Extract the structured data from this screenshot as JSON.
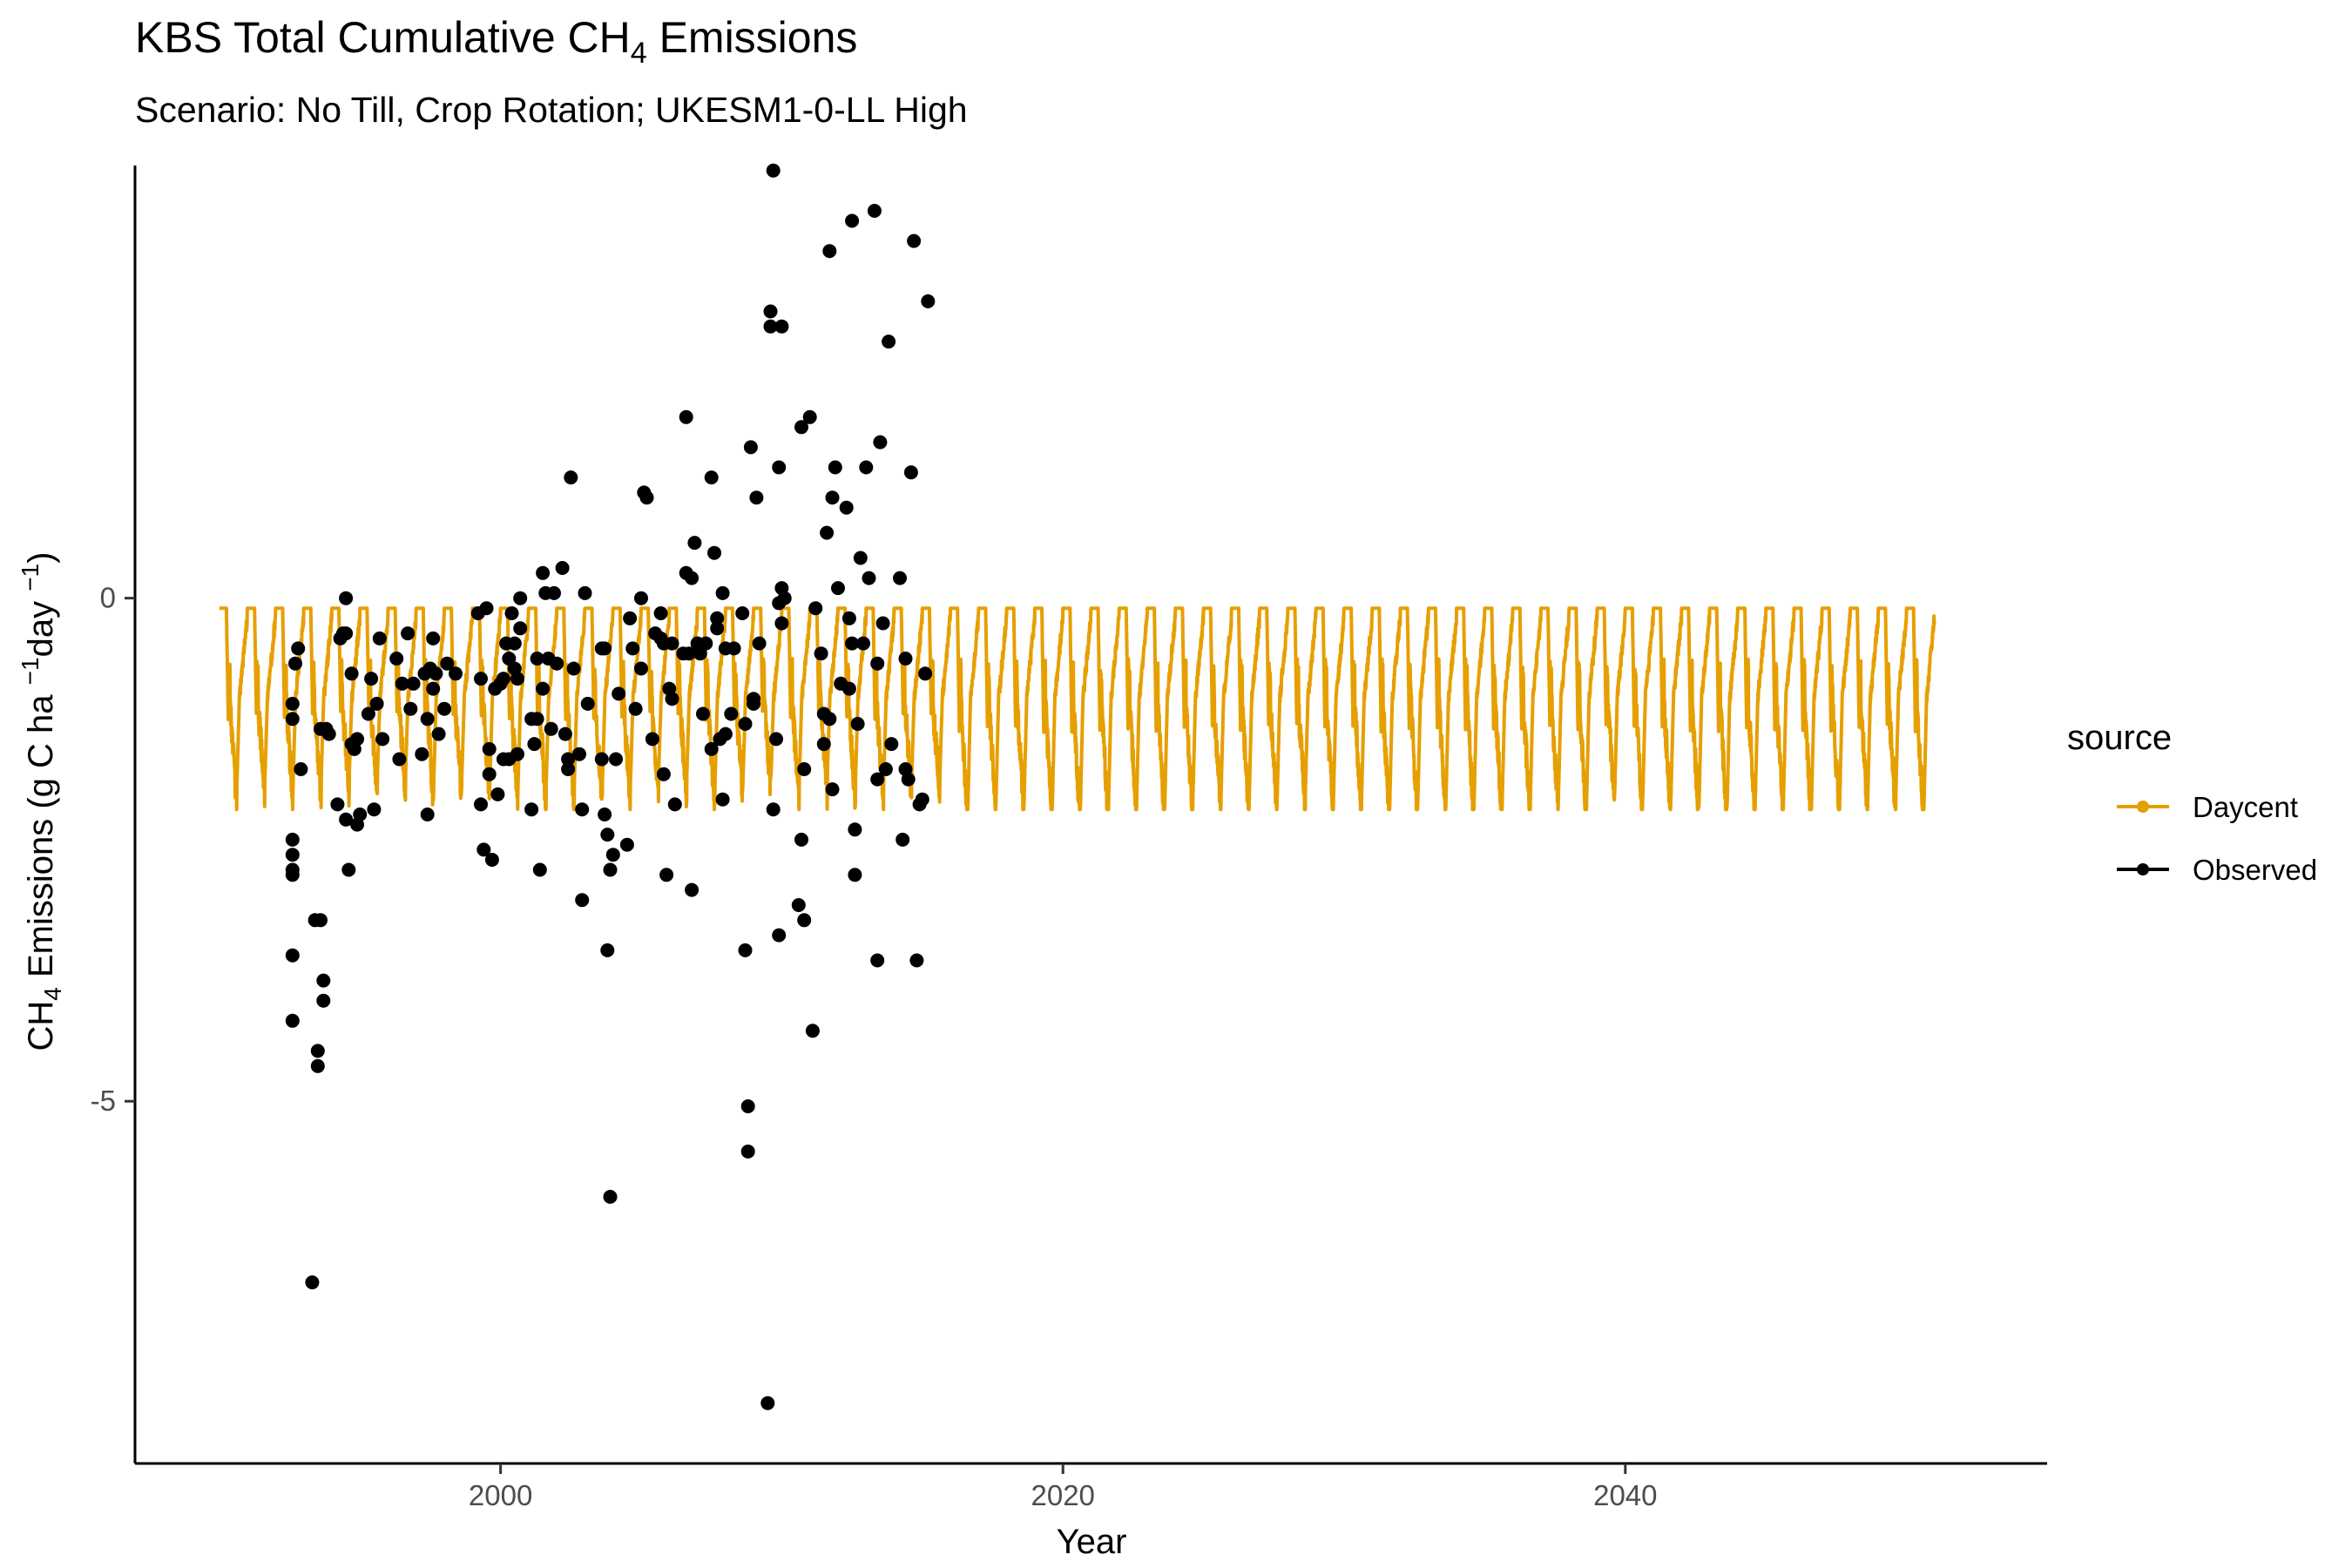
{
  "chart_data": {
    "type": "line",
    "title": "KBS Total Cumulative CH",
    "title_sub": "4",
    "title_suffix": " Emissions",
    "subtitle": "Scenario: No Till, Crop Rotation; UKESM1-0-LL High",
    "xlabel": "Year",
    "ylabel": {
      "a": "CH",
      "a_sub": "4",
      "b": " Emissions (g C ha ",
      "b_sup": "−1",
      "c": "day ",
      "c_sup": "−1",
      "d": ")"
    },
    "xlim": [
      1987,
      2055
    ],
    "ylim": [
      -8.6,
      4.3
    ],
    "x_ticks": [
      2000,
      2020,
      2040
    ],
    "y_ticks": [
      0,
      -5
    ],
    "grid": false,
    "legend": {
      "title": "source",
      "position": "right",
      "entries": [
        "Daycent",
        "Observed"
      ]
    },
    "series": [
      {
        "name": "Daycent",
        "kind": "line",
        "color": "#E69F00",
        "x_range": [
          1990,
          2051
        ],
        "cycle": "annual: near -0.1 in winter, drops to about -1.5 to -2.0 each growing season, then recovers",
        "min": -2.1,
        "max": -0.1
      },
      {
        "name": "Observed",
        "kind": "points",
        "color": "#000000",
        "points": [
          [
            1992.6,
            -2.4
          ],
          [
            1992.6,
            -2.55
          ],
          [
            1992.6,
            -2.7
          ],
          [
            1992.6,
            -2.75
          ],
          [
            1992.6,
            -3.55
          ],
          [
            1992.6,
            -4.2
          ],
          [
            1992.6,
            -1.05
          ],
          [
            1992.6,
            -1.2
          ],
          [
            1992.7,
            -0.65
          ],
          [
            1992.8,
            -0.5
          ],
          [
            1992.9,
            -1.7
          ],
          [
            1993.3,
            -6.8
          ],
          [
            1993.4,
            -3.2
          ],
          [
            1993.5,
            -4.5
          ],
          [
            1993.5,
            -4.65
          ],
          [
            1993.6,
            -3.2
          ],
          [
            1993.6,
            -1.3
          ],
          [
            1993.7,
            -4.0
          ],
          [
            1993.7,
            -3.8
          ],
          [
            1993.8,
            -1.3
          ],
          [
            1993.9,
            -1.35
          ],
          [
            1994.2,
            -2.05
          ],
          [
            1994.3,
            -0.4
          ],
          [
            1994.4,
            -0.35
          ],
          [
            1994.5,
            -2.2
          ],
          [
            1994.5,
            -0.35
          ],
          [
            1994.5,
            0.0
          ],
          [
            1994.6,
            -2.7
          ],
          [
            1994.7,
            -0.75
          ],
          [
            1994.7,
            -1.45
          ],
          [
            1994.8,
            -1.5
          ],
          [
            1994.9,
            -2.25
          ],
          [
            1994.9,
            -1.4
          ],
          [
            1995.0,
            -2.15
          ],
          [
            1995.3,
            -1.15
          ],
          [
            1995.4,
            -0.8
          ],
          [
            1995.5,
            -2.1
          ],
          [
            1995.6,
            -1.05
          ],
          [
            1995.7,
            -0.4
          ],
          [
            1995.8,
            -1.4
          ],
          [
            1996.3,
            -0.6
          ],
          [
            1996.4,
            -1.6
          ],
          [
            1996.5,
            -0.85
          ],
          [
            1996.7,
            -0.35
          ],
          [
            1996.8,
            -1.1
          ],
          [
            1996.9,
            -0.85
          ],
          [
            1997.2,
            -1.55
          ],
          [
            1997.3,
            -0.75
          ],
          [
            1997.4,
            -2.15
          ],
          [
            1997.4,
            -1.2
          ],
          [
            1997.5,
            -0.7
          ],
          [
            1997.6,
            -0.9
          ],
          [
            1997.6,
            -0.4
          ],
          [
            1997.7,
            -0.75
          ],
          [
            1997.8,
            -1.35
          ],
          [
            1998.0,
            -1.1
          ],
          [
            1998.1,
            -0.65
          ],
          [
            1998.4,
            -0.75
          ],
          [
            1999.2,
            -0.15
          ],
          [
            1999.3,
            -0.8
          ],
          [
            1999.3,
            -2.05
          ],
          [
            1999.4,
            -2.5
          ],
          [
            1999.5,
            -0.1
          ],
          [
            1999.6,
            -1.5
          ],
          [
            1999.6,
            -1.75
          ],
          [
            1999.7,
            -2.6
          ],
          [
            1999.8,
            -0.9
          ],
          [
            1999.9,
            -1.95
          ],
          [
            2000.0,
            -0.85
          ],
          [
            2000.1,
            -1.6
          ],
          [
            2000.1,
            -0.8
          ],
          [
            2000.2,
            -0.45
          ],
          [
            2000.3,
            -0.6
          ],
          [
            2000.3,
            -1.6
          ],
          [
            2000.4,
            -0.15
          ],
          [
            2000.5,
            -0.7
          ],
          [
            2000.5,
            -0.45
          ],
          [
            2000.6,
            -1.55
          ],
          [
            2000.6,
            -0.8
          ],
          [
            2000.7,
            -0.3
          ],
          [
            2000.7,
            0.0
          ],
          [
            2001.1,
            -1.2
          ],
          [
            2001.1,
            -2.1
          ],
          [
            2001.2,
            -1.45
          ],
          [
            2001.3,
            -0.6
          ],
          [
            2001.3,
            -1.2
          ],
          [
            2001.4,
            -2.7
          ],
          [
            2001.5,
            0.25
          ],
          [
            2001.5,
            -0.9
          ],
          [
            2001.6,
            0.05
          ],
          [
            2001.7,
            -0.6
          ],
          [
            2001.8,
            -1.3
          ],
          [
            2001.9,
            0.05
          ],
          [
            2002.0,
            -0.65
          ],
          [
            2002.2,
            0.3
          ],
          [
            2002.3,
            -1.35
          ],
          [
            2002.4,
            -1.6
          ],
          [
            2002.4,
            -1.7
          ],
          [
            2002.5,
            1.2
          ],
          [
            2002.6,
            -0.7
          ],
          [
            2002.8,
            -1.55
          ],
          [
            2002.9,
            -3.0
          ],
          [
            2002.9,
            -2.1
          ],
          [
            2003.0,
            0.05
          ],
          [
            2003.1,
            -1.05
          ],
          [
            2003.6,
            -0.5
          ],
          [
            2003.6,
            -1.6
          ],
          [
            2003.7,
            -0.5
          ],
          [
            2003.7,
            -2.15
          ],
          [
            2003.8,
            -3.5
          ],
          [
            2003.8,
            -2.35
          ],
          [
            2003.9,
            -5.95
          ],
          [
            2003.9,
            -2.7
          ],
          [
            2004.0,
            -2.55
          ],
          [
            2004.1,
            -1.6
          ],
          [
            2004.2,
            -0.95
          ],
          [
            2004.5,
            -2.45
          ],
          [
            2004.6,
            -0.2
          ],
          [
            2004.7,
            -0.5
          ],
          [
            2004.8,
            -1.1
          ],
          [
            2005.0,
            -0.7
          ],
          [
            2005.0,
            0.0
          ],
          [
            2005.1,
            1.05
          ],
          [
            2005.2,
            1.0
          ],
          [
            2005.4,
            -1.4
          ],
          [
            2005.5,
            -0.35
          ],
          [
            2005.7,
            -0.15
          ],
          [
            2005.7,
            -0.4
          ],
          [
            2005.8,
            -0.45
          ],
          [
            2005.8,
            -1.75
          ],
          [
            2005.9,
            -2.75
          ],
          [
            2006.0,
            -0.9
          ],
          [
            2006.1,
            -0.45
          ],
          [
            2006.1,
            -1.0
          ],
          [
            2006.2,
            -2.05
          ],
          [
            2006.5,
            -0.55
          ],
          [
            2006.6,
            1.8
          ],
          [
            2006.6,
            0.25
          ],
          [
            2006.7,
            -0.55
          ],
          [
            2006.8,
            0.2
          ],
          [
            2006.8,
            -2.9
          ],
          [
            2006.9,
            0.55
          ],
          [
            2007.0,
            -0.45
          ],
          [
            2007.1,
            -0.55
          ],
          [
            2007.2,
            -1.15
          ],
          [
            2007.3,
            -0.45
          ],
          [
            2007.5,
            1.2
          ],
          [
            2007.5,
            -1.5
          ],
          [
            2007.6,
            0.45
          ],
          [
            2007.7,
            -0.3
          ],
          [
            2007.7,
            -0.2
          ],
          [
            2007.8,
            -1.4
          ],
          [
            2007.9,
            0.05
          ],
          [
            2007.9,
            -2.0
          ],
          [
            2008.0,
            -1.35
          ],
          [
            2008.0,
            -0.5
          ],
          [
            2008.2,
            -1.15
          ],
          [
            2008.3,
            -0.5
          ],
          [
            2008.6,
            -0.15
          ],
          [
            2008.7,
            -1.25
          ],
          [
            2008.7,
            -3.5
          ],
          [
            2008.8,
            -5.5
          ],
          [
            2008.8,
            -5.05
          ],
          [
            2008.9,
            1.5
          ],
          [
            2009.0,
            -1.05
          ],
          [
            2009.0,
            -1.0
          ],
          [
            2009.1,
            1.0
          ],
          [
            2009.2,
            -0.45
          ],
          [
            2009.5,
            -8.0
          ],
          [
            2009.6,
            2.85
          ],
          [
            2009.6,
            2.7
          ],
          [
            2009.7,
            -2.1
          ],
          [
            2009.7,
            4.25
          ],
          [
            2009.8,
            -1.4
          ],
          [
            2009.9,
            -0.05
          ],
          [
            2009.9,
            1.3
          ],
          [
            2009.9,
            -3.35
          ],
          [
            2010.0,
            0.1
          ],
          [
            2010.0,
            -0.25
          ],
          [
            2010.0,
            2.7
          ],
          [
            2010.1,
            0.0
          ],
          [
            2010.6,
            -3.05
          ],
          [
            2010.7,
            1.7
          ],
          [
            2010.7,
            -2.4
          ],
          [
            2010.8,
            -1.7
          ],
          [
            2010.8,
            -3.2
          ],
          [
            2011.0,
            1.8
          ],
          [
            2011.1,
            -4.3
          ],
          [
            2011.2,
            -0.1
          ],
          [
            2011.4,
            -0.55
          ],
          [
            2011.5,
            -1.15
          ],
          [
            2011.5,
            -1.45
          ],
          [
            2011.6,
            0.65
          ],
          [
            2011.7,
            3.45
          ],
          [
            2011.7,
            -1.2
          ],
          [
            2011.8,
            -1.9
          ],
          [
            2011.8,
            1.0
          ],
          [
            2011.9,
            1.3
          ],
          [
            2012.0,
            0.1
          ],
          [
            2012.1,
            -0.85
          ],
          [
            2012.3,
            0.9
          ],
          [
            2012.4,
            -0.2
          ],
          [
            2012.4,
            -0.9
          ],
          [
            2012.5,
            3.75
          ],
          [
            2012.5,
            -0.45
          ],
          [
            2012.6,
            -2.75
          ],
          [
            2012.6,
            -2.3
          ],
          [
            2012.7,
            -1.25
          ],
          [
            2012.8,
            0.4
          ],
          [
            2012.9,
            -0.45
          ],
          [
            2013.0,
            1.3
          ],
          [
            2013.1,
            0.2
          ],
          [
            2013.3,
            3.85
          ],
          [
            2013.4,
            -3.6
          ],
          [
            2013.4,
            -1.8
          ],
          [
            2013.4,
            -0.65
          ],
          [
            2013.5,
            1.55
          ],
          [
            2013.6,
            -0.25
          ],
          [
            2013.7,
            -1.7
          ],
          [
            2013.8,
            2.55
          ],
          [
            2013.9,
            -1.45
          ],
          [
            2014.2,
            0.2
          ],
          [
            2014.3,
            -2.4
          ],
          [
            2014.4,
            -0.6
          ],
          [
            2014.4,
            -1.7
          ],
          [
            2014.5,
            -1.8
          ],
          [
            2014.6,
            1.25
          ],
          [
            2014.7,
            3.55
          ],
          [
            2014.8,
            -3.6
          ],
          [
            2014.9,
            -2.05
          ],
          [
            2015.0,
            -2.0
          ],
          [
            2015.1,
            -0.75
          ],
          [
            2015.2,
            2.95
          ]
        ]
      }
    ]
  }
}
